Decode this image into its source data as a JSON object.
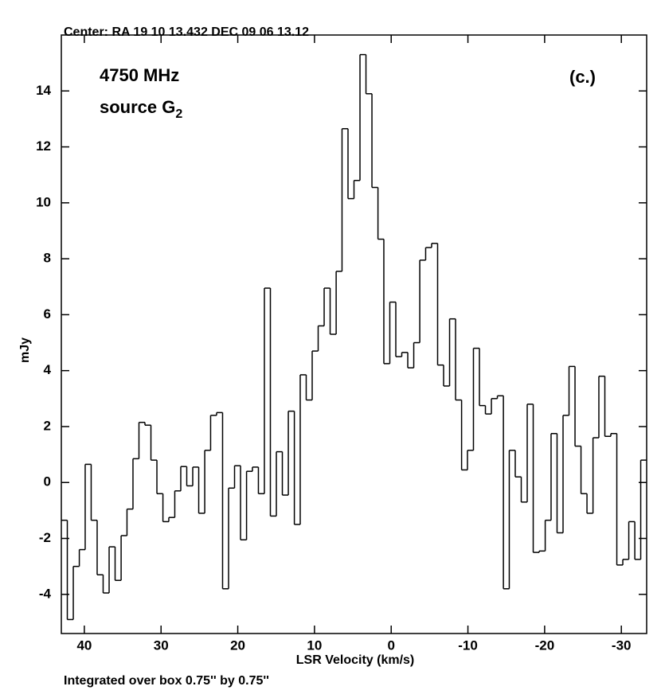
{
  "chart_data": {
    "type": "step",
    "title": "Center:  RA 19 10 13.432  DEC 09 06 13.12",
    "footer": "Integrated over box 0.75'' by 0.75''",
    "xlabel": "LSR Velocity (km/s)",
    "ylabel": "mJy",
    "annotation": "4750 MHz",
    "source_label": {
      "text": "source G",
      "subscript": "2"
    },
    "panel_label": "(c.)",
    "color": "#000000",
    "xlim": [
      43,
      -33.3
    ],
    "ylim": [
      -5.4,
      16
    ],
    "xticks": [
      40,
      30,
      20,
      10,
      0,
      -10,
      -20,
      -30
    ],
    "yticks": [
      -4,
      -2,
      0,
      2,
      4,
      6,
      8,
      10,
      12,
      14
    ],
    "x": [
      42.61,
      41.83,
      41.05,
      40.27,
      39.5,
      38.72,
      37.94,
      37.16,
      36.38,
      35.6,
      34.82,
      34.05,
      33.27,
      32.49,
      31.71,
      30.93,
      30.15,
      29.37,
      28.6,
      27.82,
      27.04,
      26.26,
      25.48,
      24.7,
      23.92,
      23.15,
      22.37,
      21.59,
      20.81,
      20.03,
      19.25,
      18.47,
      17.7,
      16.92,
      16.14,
      15.36,
      14.58,
      13.8,
      13.02,
      12.24,
      11.47,
      10.69,
      9.91,
      9.13,
      8.35,
      7.57,
      6.79,
      6.02,
      5.24,
      4.46,
      3.68,
      2.9,
      2.12,
      1.34,
      0.57,
      -0.21,
      -0.99,
      -1.77,
      -2.55,
      -3.33,
      -4.11,
      -4.88,
      -5.66,
      -6.44,
      -7.22,
      -8.0,
      -8.78,
      -9.56,
      -10.33,
      -11.11,
      -11.89,
      -12.67,
      -13.45,
      -14.23,
      -15.01,
      -15.78,
      -16.56,
      -17.34,
      -18.12,
      -18.9,
      -19.68,
      -20.46,
      -21.23,
      -22.01,
      -22.79,
      -23.57,
      -24.35,
      -25.13,
      -25.91,
      -26.69,
      -27.46,
      -28.24,
      -29.02,
      -29.8,
      -30.58,
      -31.36,
      -32.14,
      -32.91
    ],
    "values": [
      -1.35,
      -4.9,
      -3.0,
      -2.4,
      0.65,
      -1.35,
      -3.3,
      -3.95,
      -2.3,
      -3.5,
      -1.9,
      -0.95,
      0.85,
      2.15,
      2.05,
      0.8,
      -0.4,
      -1.4,
      -1.25,
      -0.3,
      0.57,
      -0.12,
      0.55,
      -1.1,
      1.15,
      2.4,
      2.5,
      -3.8,
      -0.2,
      0.6,
      -2.05,
      0.4,
      0.55,
      -0.4,
      6.95,
      -1.2,
      1.1,
      -0.45,
      2.55,
      -1.5,
      3.85,
      2.95,
      4.7,
      5.6,
      6.95,
      5.3,
      7.55,
      12.65,
      10.15,
      10.8,
      15.3,
      13.9,
      10.55,
      8.7,
      4.25,
      6.45,
      4.5,
      4.65,
      4.1,
      5.0,
      7.95,
      8.4,
      8.55,
      4.2,
      3.45,
      5.85,
      2.95,
      0.45,
      1.15,
      4.8,
      2.75,
      2.45,
      3.0,
      3.1,
      -3.8,
      1.15,
      0.2,
      -0.7,
      2.8,
      -2.5,
      -2.45,
      -1.35,
      1.75,
      -1.8,
      2.4,
      4.15,
      1.3,
      -0.4,
      -1.1,
      1.6,
      3.8,
      1.65,
      1.75,
      -2.95,
      -2.75,
      -1.4,
      -2.75,
      0.8
    ]
  }
}
